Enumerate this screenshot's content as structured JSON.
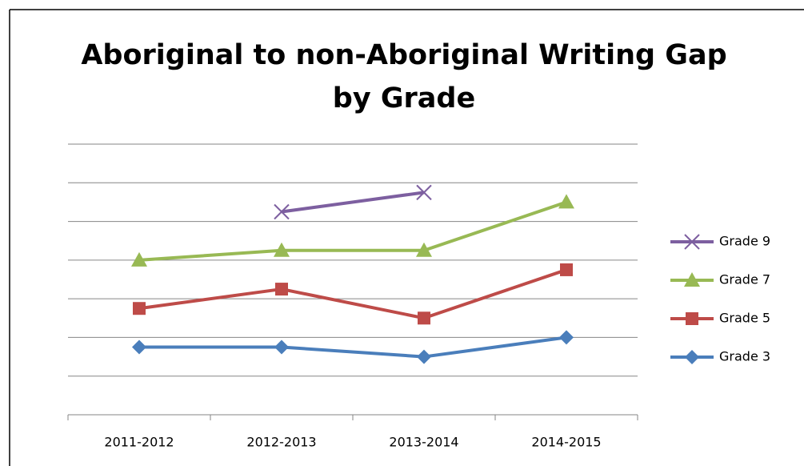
{
  "chart_data": {
    "type": "line",
    "title": "Aboriginal to non-Aboriginal Writing Gap by Grade",
    "categories": [
      "2011-2012",
      "2012-2013",
      "2013-2014",
      "2014-2015"
    ],
    "series": [
      {
        "name": "Grade 3",
        "color": "#4a7ebb",
        "marker": "diamond",
        "values": [
          1.75,
          1.75,
          1.5,
          2.0
        ]
      },
      {
        "name": "Grade 5",
        "color": "#be4b48",
        "marker": "square",
        "values": [
          2.75,
          3.25,
          2.5,
          3.75
        ]
      },
      {
        "name": "Grade 7",
        "color": "#98b954",
        "marker": "triangle",
        "values": [
          4.0,
          4.25,
          4.25,
          5.5
        ]
      },
      {
        "name": "Grade 9",
        "color": "#7d5fa0",
        "marker": "x",
        "values": [
          null,
          5.25,
          5.75,
          null
        ]
      }
    ],
    "ylim": [
      0,
      7
    ],
    "yticks": [
      0,
      1,
      2,
      3,
      4,
      5,
      6,
      7
    ],
    "grid": true,
    "legend": "right"
  }
}
